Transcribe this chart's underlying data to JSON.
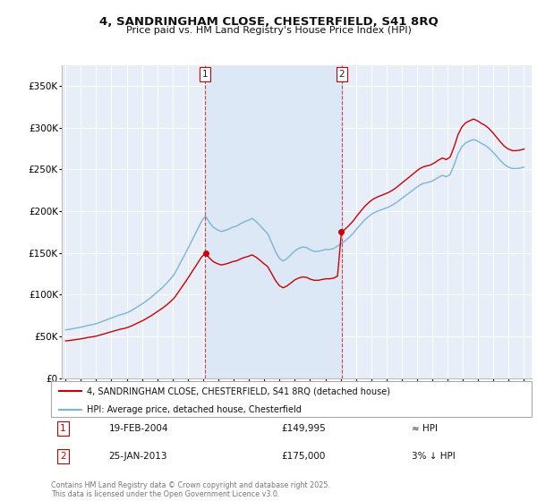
{
  "title": "4, SANDRINGHAM CLOSE, CHESTERFIELD, S41 8RQ",
  "subtitle": "Price paid vs. HM Land Registry's House Price Index (HPI)",
  "background_color": "#ffffff",
  "plot_background": "#e8eef8",
  "ownership_bg": "#dce8f5",
  "grid_color": "#ffffff",
  "ylim": [
    0,
    375000
  ],
  "yticks": [
    0,
    50000,
    100000,
    150000,
    200000,
    250000,
    300000,
    350000
  ],
  "ytick_labels": [
    "£0",
    "£50K",
    "£100K",
    "£150K",
    "£200K",
    "£250K",
    "£300K",
    "£350K"
  ],
  "sale1_date": 2004.12,
  "sale1_price": 149995,
  "sale2_date": 2013.07,
  "sale2_price": 175000,
  "sale1_label": "1",
  "sale2_label": "2",
  "sale1_text": "19-FEB-2004",
  "sale1_price_text": "£149,995",
  "sale1_hpi_text": "≈ HPI",
  "sale2_text": "25-JAN-2013",
  "sale2_price_text": "£175,000",
  "sale2_hpi_text": "3% ↓ HPI",
  "legend1": "4, SANDRINGHAM CLOSE, CHESTERFIELD, S41 8RQ (detached house)",
  "legend2": "HPI: Average price, detached house, Chesterfield",
  "footer": "Contains HM Land Registry data © Crown copyright and database right 2025.\nThis data is licensed under the Open Government Licence v3.0.",
  "red_color": "#cc0000",
  "blue_color": "#7ab4d8",
  "xlim_start": 1994.75,
  "xlim_end": 2025.5,
  "hpi_base_1995": 58000,
  "hpi_index": [
    100,
    101,
    102.5,
    104,
    105.5,
    107.5,
    109.5,
    111,
    113,
    116,
    119,
    122,
    125,
    128,
    131,
    133,
    136,
    140,
    145,
    150,
    155,
    161,
    167,
    174,
    181,
    188,
    196,
    205,
    215,
    230,
    245,
    260,
    276,
    292,
    308,
    324,
    335,
    322,
    312,
    307,
    303,
    305,
    308,
    312,
    314,
    319,
    323,
    326,
    330,
    324,
    316,
    307,
    299,
    281,
    262,
    248,
    242,
    247,
    255,
    263,
    268,
    271,
    270,
    265,
    262,
    262,
    264,
    266,
    266,
    268,
    273,
    278,
    284,
    291,
    299,
    309,
    318,
    327,
    334,
    340,
    344,
    347,
    350,
    353,
    357,
    362,
    368,
    374,
    380,
    386,
    392,
    398,
    402,
    404,
    406,
    410,
    415,
    419,
    416,
    421,
    440,
    463,
    478,
    486,
    490,
    493,
    490,
    485,
    481,
    475,
    467,
    458,
    449,
    441,
    436,
    433,
    433,
    434,
    436
  ]
}
